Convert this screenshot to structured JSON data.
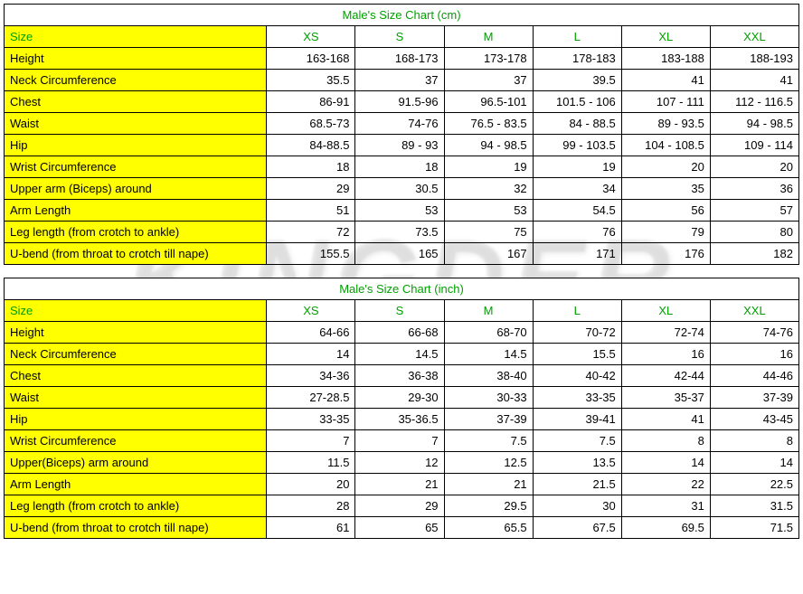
{
  "tables": [
    {
      "title": "Male's Size Chart (cm)",
      "size_label": "Size",
      "sizes": [
        "XS",
        "S",
        "M",
        "L",
        "XL",
        "XXL"
      ],
      "rows": [
        {
          "label": "Height",
          "values": [
            "163-168",
            "168-173",
            "173-178",
            "178-183",
            "183-188",
            "188-193"
          ]
        },
        {
          "label": "Neck Circumference",
          "values": [
            "35.5",
            "37",
            "37",
            "39.5",
            "41",
            "41"
          ]
        },
        {
          "label": "Chest",
          "values": [
            "86-91",
            "91.5-96",
            "96.5-101",
            "101.5 - 106",
            "107 - 111",
            "112 - 116.5"
          ]
        },
        {
          "label": "Waist",
          "values": [
            "68.5-73",
            "74-76",
            "76.5 - 83.5",
            "84 - 88.5",
            "89 - 93.5",
            "94 - 98.5"
          ]
        },
        {
          "label": "Hip",
          "values": [
            "84-88.5",
            "89 - 93",
            "94 - 98.5",
            "99 - 103.5",
            "104 - 108.5",
            "109 - 114"
          ]
        },
        {
          "label": "Wrist Circumference",
          "values": [
            "18",
            "18",
            "19",
            "19",
            "20",
            "20"
          ]
        },
        {
          "label": "Upper arm (Biceps) around",
          "values": [
            "29",
            "30.5",
            "32",
            "34",
            "35",
            "36"
          ]
        },
        {
          "label": "Arm Length",
          "values": [
            "51",
            "53",
            "53",
            "54.5",
            "56",
            "57"
          ]
        },
        {
          "label": "Leg length (from crotch to ankle)",
          "values": [
            "72",
            "73.5",
            "75",
            "76",
            "79",
            "80"
          ]
        },
        {
          "label": "U-bend (from throat to crotch till nape)",
          "values": [
            "155.5",
            "165",
            "167",
            "171",
            "176",
            "182"
          ]
        }
      ]
    },
    {
      "title": "Male's Size Chart (inch)",
      "size_label": "Size",
      "sizes": [
        "XS",
        "S",
        "M",
        "L",
        "XL",
        "XXL"
      ],
      "rows": [
        {
          "label": "Height",
          "values": [
            "64-66",
            "66-68",
            "68-70",
            "70-72",
            "72-74",
            "74-76"
          ]
        },
        {
          "label": "Neck Circumference",
          "values": [
            "14",
            "14.5",
            "14.5",
            "15.5",
            "16",
            "16"
          ]
        },
        {
          "label": "Chest",
          "values": [
            "34-36",
            "36-38",
            "38-40",
            "40-42",
            "42-44",
            "44-46"
          ]
        },
        {
          "label": "Waist",
          "values": [
            "27-28.5",
            "29-30",
            "30-33",
            "33-35",
            "35-37",
            "37-39"
          ]
        },
        {
          "label": "Hip",
          "values": [
            "33-35",
            "35-36.5",
            "37-39",
            "39-41",
            "41",
            "43-45"
          ]
        },
        {
          "label": "Wrist Circumference",
          "values": [
            "7",
            "7",
            "7.5",
            "7.5",
            "8",
            "8"
          ]
        },
        {
          "label": "Upper(Biceps) arm around",
          "values": [
            "11.5",
            "12",
            "12.5",
            "13.5",
            "14",
            "14"
          ]
        },
        {
          "label": "Arm Length",
          "values": [
            "20",
            "21",
            "21",
            "21.5",
            "22",
            "22.5"
          ]
        },
        {
          "label": "Leg length (from crotch to ankle)",
          "values": [
            "28",
            "29",
            "29.5",
            "30",
            "31",
            "31.5"
          ]
        },
        {
          "label": "U-bend (from throat to crotch till nape)",
          "values": [
            "61",
            "65",
            "65.5",
            "67.5",
            "69.5",
            "71.5"
          ]
        }
      ]
    }
  ],
  "colors": {
    "header_text": "#00a000",
    "label_bg": "#ffff00",
    "border": "#000000",
    "text": "#000000"
  }
}
